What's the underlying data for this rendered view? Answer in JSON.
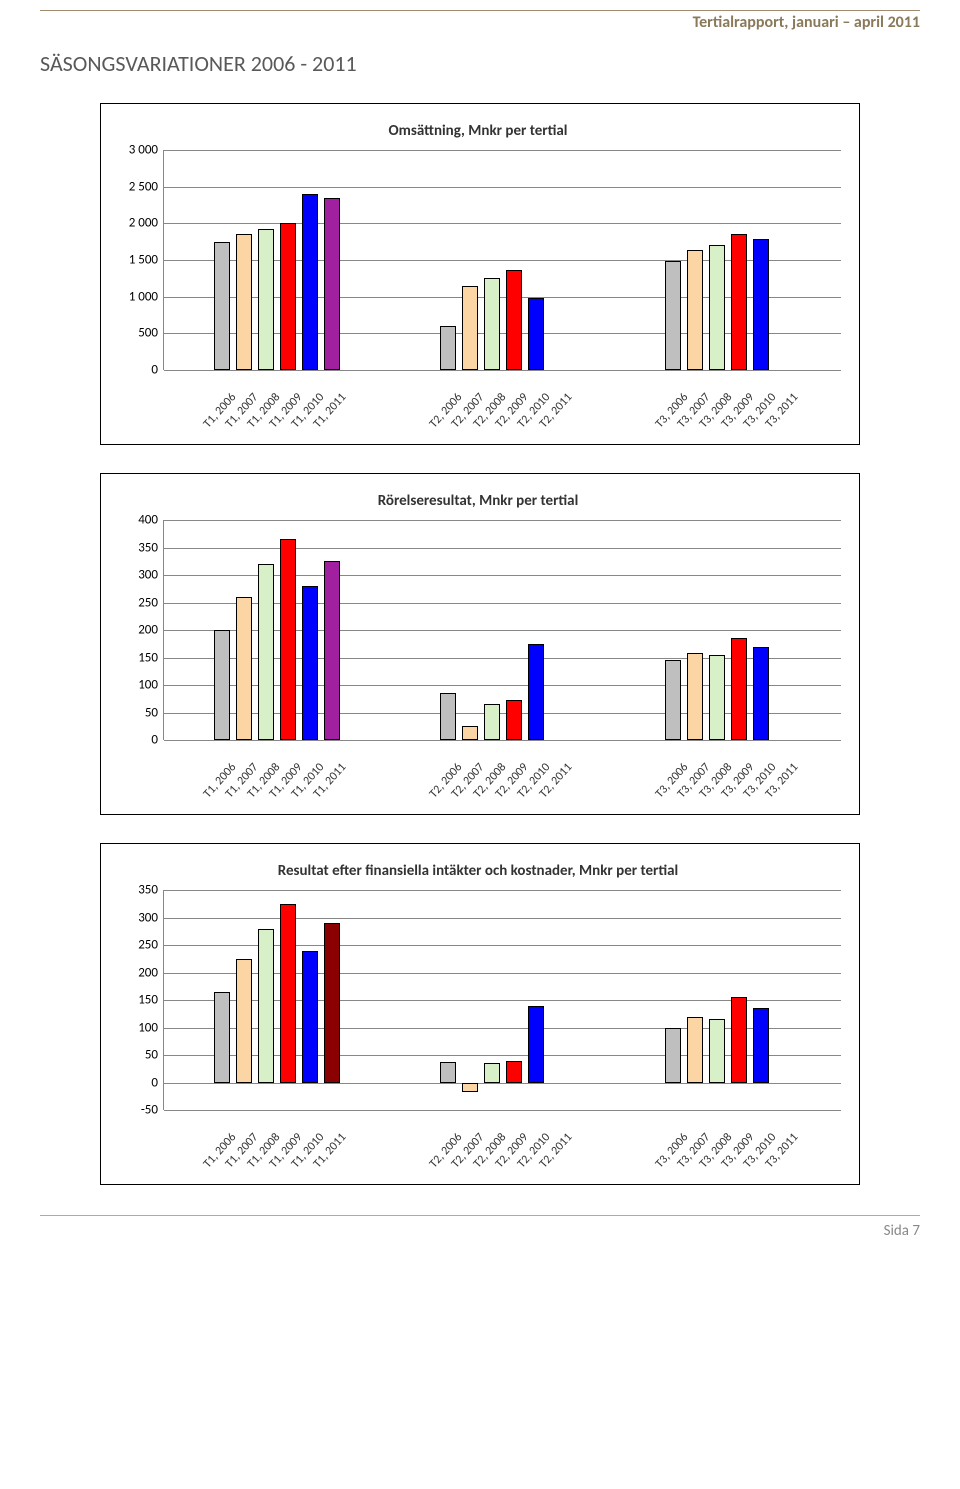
{
  "header": "Tertialrapport, januari – april 2011",
  "page_title": "SÄSONGSVARIATIONER 2006 - 2011",
  "footer": "Sida 7",
  "colors": {
    "year2006": "#bfbfbf",
    "year2007": "#fcd5a4",
    "year2008": "#d7f0c8",
    "year2009": "#ff0000",
    "year2010": "#0000ff",
    "year2011": "#a020a0",
    "year2011_dark": "#8b0000",
    "gridline": "#878787",
    "border": "#000000",
    "bg": "#ffffff"
  },
  "x_categories_groups": [
    "T1",
    "T2",
    "T3"
  ],
  "x_years": [
    "2006",
    "2007",
    "2008",
    "2009",
    "2010",
    "2011"
  ],
  "chart1": {
    "title": "Omsättning, Mnkr per tertial",
    "type": "bar",
    "ylim": [
      0,
      3000
    ],
    "ytick_step": 500,
    "yticks": [
      "0",
      "500",
      "1 000",
      "1 500",
      "2 000",
      "2 500",
      "3 000"
    ],
    "groups": [
      {
        "labels": [
          "T1, 2006",
          "T1, 2007",
          "T1, 2008",
          "T1, 2009",
          "T1, 2010",
          "T1, 2011"
        ],
        "values": [
          1750,
          1850,
          1920,
          2010,
          2400,
          2350
        ],
        "colors": [
          "year2006",
          "year2007",
          "year2008",
          "year2009",
          "year2010",
          "year2011"
        ]
      },
      {
        "labels": [
          "T2, 2006",
          "T2, 2007",
          "T2, 2008",
          "T2, 2009",
          "T2, 2010",
          "T2, 2011"
        ],
        "values": [
          600,
          1150,
          1250,
          1360,
          980,
          null
        ],
        "colors": [
          "year2006",
          "year2007",
          "year2008",
          "year2009",
          "year2010",
          "year2011"
        ]
      },
      {
        "labels": [
          "T3, 2006",
          "T3, 2007",
          "T3, 2008",
          "T3, 2009",
          "T3, 2010",
          "T3, 2011"
        ],
        "values": [
          1480,
          1630,
          1700,
          1860,
          1780,
          null
        ],
        "colors": [
          "year2006",
          "year2007",
          "year2008",
          "year2009",
          "year2010",
          "year2011"
        ]
      }
    ]
  },
  "chart2": {
    "title": "Rörelseresultat, Mnkr per tertial",
    "type": "bar",
    "ylim": [
      0,
      400
    ],
    "ytick_step": 50,
    "yticks": [
      "0",
      "50",
      "100",
      "150",
      "200",
      "250",
      "300",
      "350",
      "400"
    ],
    "groups": [
      {
        "labels": [
          "T1, 2006",
          "T1, 2007",
          "T1, 2008",
          "T1, 2009",
          "T1, 2010",
          "T1, 2011"
        ],
        "values": [
          200,
          260,
          320,
          365,
          280,
          325
        ],
        "colors": [
          "year2006",
          "year2007",
          "year2008",
          "year2009",
          "year2010",
          "year2011"
        ]
      },
      {
        "labels": [
          "T2, 2006",
          "T2, 2007",
          "T2, 2008",
          "T2, 2009",
          "T2, 2010",
          "T2, 2011"
        ],
        "values": [
          85,
          25,
          65,
          72,
          175,
          null
        ],
        "colors": [
          "year2006",
          "year2007",
          "year2008",
          "year2009",
          "year2010",
          "year2011"
        ]
      },
      {
        "labels": [
          "T3, 2006",
          "T3, 2007",
          "T3, 2008",
          "T3, 2009",
          "T3, 2010",
          "T3, 2011"
        ],
        "values": [
          145,
          158,
          155,
          185,
          170,
          null
        ],
        "colors": [
          "year2006",
          "year2007",
          "year2008",
          "year2009",
          "year2010",
          "year2011"
        ]
      }
    ]
  },
  "chart3": {
    "title": "Resultat efter finansiella intäkter och kostnader, Mnkr per tertial",
    "type": "bar",
    "ylim": [
      -50,
      350
    ],
    "ytick_step": 50,
    "yticks": [
      "-50",
      "0",
      "50",
      "100",
      "150",
      "200",
      "250",
      "300",
      "350"
    ],
    "groups": [
      {
        "labels": [
          "T1, 2006",
          "T1, 2007",
          "T1, 2008",
          "T1, 2009",
          "T1, 2010",
          "T1, 2011"
        ],
        "values": [
          165,
          225,
          280,
          325,
          240,
          290
        ],
        "colors": [
          "year2006",
          "year2007",
          "year2008",
          "year2009",
          "year2010",
          "year2011_dark"
        ]
      },
      {
        "labels": [
          "T2, 2006",
          "T2, 2007",
          "T2, 2008",
          "T2, 2009",
          "T2, 2010",
          "T2, 2011"
        ],
        "values": [
          38,
          -18,
          35,
          40,
          140,
          null
        ],
        "colors": [
          "year2006",
          "year2007",
          "year2008",
          "year2009",
          "year2010",
          "year2011_dark"
        ]
      },
      {
        "labels": [
          "T3, 2006",
          "T3, 2007",
          "T3, 2008",
          "T3, 2009",
          "T3, 2010",
          "T3, 2011"
        ],
        "values": [
          100,
          120,
          115,
          155,
          135,
          null
        ],
        "colors": [
          "year2006",
          "year2007",
          "year2008",
          "year2009",
          "year2010",
          "year2011_dark"
        ]
      }
    ]
  }
}
